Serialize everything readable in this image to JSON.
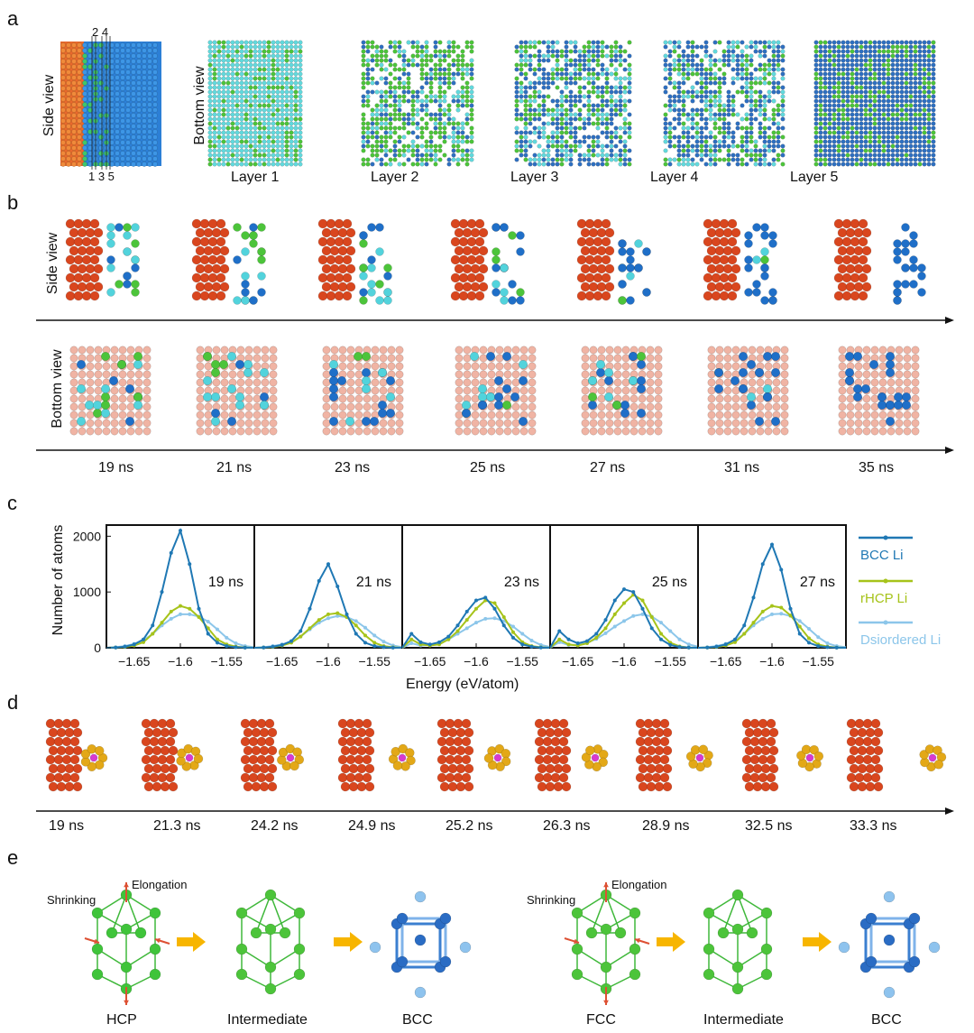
{
  "panels": {
    "a": "a",
    "b": "b",
    "c": "c",
    "d": "d",
    "e": "e"
  },
  "panel_a": {
    "side_view_label": "Side view",
    "bottom_view_label": "Bottom view",
    "top_layer_marks": "2 4",
    "bottom_layer_marks": "1 3 5",
    "layers": [
      "Layer 1",
      "Layer 2",
      "Layer 3",
      "Layer 4",
      "Layer 5"
    ]
  },
  "panel_b": {
    "side_view_label": "Side view",
    "bottom_view_label": "Bottom view",
    "times": [
      "19 ns",
      "21 ns",
      "23 ns",
      "25 ns",
      "27 ns",
      "31 ns",
      "35 ns"
    ]
  },
  "chart_data": {
    "type": "line",
    "ylabel": "Number of atoms",
    "xlabel": "Energy (eV/atom)",
    "ylim": [
      0,
      2200
    ],
    "xlim": [
      -1.68,
      -1.52
    ],
    "yticks": [
      "0",
      "1000",
      "2000"
    ],
    "xticks": [
      "−1.65",
      "−1.6",
      "−1.55"
    ],
    "legend_position": "right",
    "series_names": [
      "BCC Li",
      "rHCP Li",
      "Dsiordered Li"
    ],
    "series_colors": [
      "#1f78b4",
      "#a6c31a",
      "#8cc6ea"
    ],
    "x": [
      -1.68,
      -1.67,
      -1.66,
      -1.65,
      -1.64,
      -1.63,
      -1.62,
      -1.61,
      -1.6,
      -1.59,
      -1.58,
      -1.57,
      -1.56,
      -1.55,
      -1.54,
      -1.53,
      -1.52
    ],
    "subplots": [
      {
        "label": "19 ns",
        "series": [
          {
            "name": "BCC Li",
            "values": [
              0,
              5,
              20,
              60,
              150,
              400,
              1000,
              1700,
              2100,
              1500,
              700,
              250,
              90,
              30,
              10,
              3,
              0
            ]
          },
          {
            "name": "rHCP Li",
            "values": [
              0,
              5,
              15,
              40,
              100,
              250,
              450,
              650,
              750,
              700,
              550,
              350,
              150,
              60,
              20,
              5,
              0
            ]
          },
          {
            "name": "Dsiordered Li",
            "values": [
              0,
              10,
              30,
              70,
              130,
              250,
              400,
              520,
              600,
              600,
              560,
              470,
              330,
              180,
              80,
              30,
              10
            ]
          }
        ]
      },
      {
        "label": "21 ns",
        "series": [
          {
            "name": "BCC Li",
            "values": [
              0,
              5,
              20,
              50,
              120,
              300,
              700,
              1200,
              1500,
              1100,
              600,
              250,
              90,
              30,
              10,
              3,
              0
            ]
          },
          {
            "name": "rHCP Li",
            "values": [
              0,
              5,
              15,
              40,
              90,
              200,
              350,
              500,
              600,
              620,
              550,
              400,
              220,
              90,
              30,
              8,
              0
            ]
          },
          {
            "name": "Dsiordered Li",
            "values": [
              0,
              10,
              30,
              60,
              110,
              200,
              330,
              450,
              530,
              570,
              550,
              480,
              360,
              220,
              110,
              40,
              10
            ]
          }
        ]
      },
      {
        "label": "23 ns",
        "series": [
          {
            "name": "BCC Li",
            "values": [
              0,
              250,
              100,
              60,
              100,
              200,
              400,
              650,
              850,
              900,
              700,
              400,
              180,
              60,
              20,
              5,
              0
            ]
          },
          {
            "name": "rHCP Li",
            "values": [
              0,
              150,
              60,
              40,
              60,
              150,
              300,
              500,
              700,
              850,
              800,
              550,
              280,
              100,
              30,
              8,
              0
            ]
          },
          {
            "name": "Dsiordered Li",
            "values": [
              0,
              80,
              40,
              50,
              80,
              150,
              250,
              350,
              450,
              520,
              530,
              480,
              380,
              250,
              130,
              50,
              15
            ]
          }
        ]
      },
      {
        "label": "25 ns",
        "series": [
          {
            "name": "BCC Li",
            "values": [
              0,
              300,
              150,
              80,
              120,
              250,
              500,
              850,
              1050,
              1000,
              700,
              350,
              150,
              50,
              15,
              5,
              0
            ]
          },
          {
            "name": "rHCP Li",
            "values": [
              0,
              150,
              60,
              40,
              80,
              180,
              350,
              600,
              800,
              950,
              850,
              550,
              250,
              90,
              25,
              5,
              0
            ]
          },
          {
            "name": "Dsiordered Li",
            "values": [
              0,
              100,
              50,
              50,
              90,
              160,
              260,
              380,
              480,
              570,
              600,
              560,
              450,
              300,
              150,
              60,
              20
            ]
          }
        ]
      },
      {
        "label": "27 ns",
        "series": [
          {
            "name": "BCC Li",
            "values": [
              0,
              5,
              20,
              60,
              150,
              400,
              900,
              1500,
              1850,
              1400,
              700,
              250,
              90,
              30,
              10,
              3,
              0
            ]
          },
          {
            "name": "rHCP Li",
            "values": [
              0,
              5,
              15,
              40,
              100,
              250,
              450,
              650,
              750,
              720,
              580,
              380,
              170,
              60,
              20,
              5,
              0
            ]
          },
          {
            "name": "Dsiordered Li",
            "values": [
              0,
              10,
              30,
              70,
              130,
              250,
              400,
              520,
              600,
              610,
              570,
              480,
              340,
              190,
              80,
              30,
              10
            ]
          }
        ]
      }
    ]
  },
  "panel_d": {
    "times": [
      "19 ns",
      "21.3 ns",
      "24.2 ns",
      "24.9 ns",
      "25.2 ns",
      "26.3 ns",
      "28.9 ns",
      "32.5 ns",
      "33.3 ns"
    ]
  },
  "panel_e": {
    "left": {
      "shrinking": "Shrinking",
      "elongation": "Elongation",
      "start": "HCP",
      "mid": "Intermediate",
      "end": "BCC"
    },
    "right": {
      "shrinking": "Shrinking",
      "elongation": "Elongation",
      "start": "FCC",
      "mid": "Intermediate",
      "end": "BCC"
    }
  },
  "colors": {
    "substrate": "#d9461e",
    "substrate_light": "#f0b4a4",
    "bcc": "#1f6fc8",
    "hcp": "#4cc43a",
    "disordered": "#52d3dc",
    "cluster": "#e3a817",
    "center": "#d83ad0",
    "arrow_red": "#dd5033",
    "arrow_yellow": "#f7b500"
  }
}
